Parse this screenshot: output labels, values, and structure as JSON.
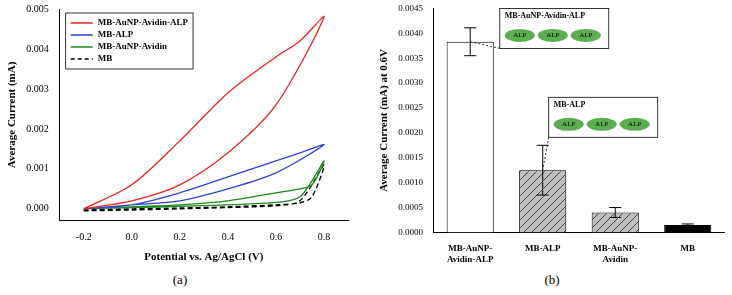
{
  "chart_data": [
    {
      "type": "line",
      "caption": "(a)",
      "x_label": "Potential vs. Ag/AgCl (V)",
      "y_label": "Average Current (mA)",
      "xlim": [
        -0.3,
        0.9
      ],
      "xticks": [
        -0.2,
        {
          "value": 0.0,
          "label": "0.0"
        },
        0.2,
        0.4,
        0.6,
        0.8
      ],
      "ylim": [
        -0.0003,
        0.005
      ],
      "yticks": [
        {
          "value": 0,
          "label": "0.000"
        },
        {
          "value": 0.001,
          "label": "0.001"
        },
        {
          "value": 0.002,
          "label": "0.002"
        },
        {
          "value": 0.003,
          "label": "0.003"
        },
        {
          "value": 0.004,
          "label": "0.004"
        },
        {
          "value": 0.005,
          "label": "0.005"
        }
      ],
      "grid": false,
      "legend": "top-left",
      "series": [
        {
          "name": "MB-AuNP-Avidin-ALP",
          "color": "#e8251f",
          "line_style": "solid",
          "x": [
            -0.2,
            0.0,
            0.2,
            0.4,
            0.6,
            0.8,
            0.7,
            0.6,
            0.4,
            0.2,
            0.0,
            -0.2
          ],
          "values": [
            0.0,
            0.0002,
            0.0006,
            0.0014,
            0.0026,
            0.0048,
            0.0042,
            0.0038,
            0.0029,
            0.0017,
            0.0006,
            0.0
          ]
        },
        {
          "name": "MB-ALP",
          "color": "#2e3fd6",
          "line_style": "solid",
          "x": [
            -0.2,
            0.0,
            0.2,
            0.4,
            0.6,
            0.8,
            0.7,
            0.6,
            0.4,
            0.2,
            0.0,
            -0.2
          ],
          "values": [
            0.0,
            0.0001,
            0.0002,
            0.0005,
            0.0009,
            0.0016,
            0.0014,
            0.0012,
            0.0008,
            0.0004,
            0.0001,
            0.0
          ]
        },
        {
          "name": "MB-AuNP-Avidin",
          "color": "#1a8a1a",
          "line_style": "solid",
          "x": [
            -0.2,
            0.0,
            0.2,
            0.4,
            0.6,
            0.7,
            0.8,
            0.75,
            0.7,
            0.6,
            0.4,
            0.2,
            0.0,
            -0.2
          ],
          "values": [
            0.0,
            3e-05,
            6e-05,
            0.0001,
            0.00016,
            0.0003,
            0.0012,
            0.0006,
            0.0005,
            0.0004,
            0.0002,
            0.0001,
            5e-05,
            0.0
          ]
        },
        {
          "name": "MB",
          "color": "#000000",
          "line_style": "dashed",
          "x": [
            -0.2,
            0.0,
            0.2,
            0.4,
            0.6,
            0.7,
            0.8,
            0.75,
            0.7,
            0.6,
            0.4,
            0.2,
            0.0,
            -0.2
          ],
          "values": [
            -5e-05,
            -3e-05,
            0.0,
            3e-05,
            8e-05,
            0.0002,
            0.0011,
            0.0003,
            0.00015,
            0.0001,
            5e-05,
            2e-05,
            0.0,
            -2e-05
          ]
        }
      ]
    },
    {
      "type": "bar",
      "caption": "(b)",
      "y_label": "Average Current (mA) at 0.6V",
      "categories": [
        "MB-AuNP-Avidin-ALP",
        "MB-ALP",
        "MB-AuNP-Avidin",
        "MB"
      ],
      "values": [
        0.00383,
        0.00125,
        0.0004,
        0.00015
      ],
      "errors": [
        0.00028,
        0.0005,
        0.0001,
        2e-05
      ],
      "colors": [
        "#ffffff",
        "#bfbfbf",
        "#bfbfbf",
        "#000000"
      ],
      "ylim": [
        0,
        0.0045
      ],
      "yticks": [
        {
          "value": 0,
          "label": "0.0000"
        },
        {
          "value": 0.0005,
          "label": "0.0005"
        },
        {
          "value": 0.001,
          "label": "0.0010"
        },
        {
          "value": 0.0015,
          "label": "0.0015"
        },
        {
          "value": 0.002,
          "label": "0.0020"
        },
        {
          "value": 0.0025,
          "label": "0.0025"
        },
        {
          "value": 0.003,
          "label": "0.0030"
        },
        {
          "value": 0.0035,
          "label": "0.0035"
        },
        {
          "value": 0.004,
          "label": "0.0040"
        },
        {
          "value": 0.0045,
          "label": "0.0045"
        }
      ],
      "grid": false,
      "annotations": [
        {
          "category": "MB-AuNP-Avidin-ALP",
          "text": "MB-AuNP-Avidin-ALP",
          "items": [
            "ALP",
            "ALP",
            "ALP"
          ]
        },
        {
          "category": "MB-ALP",
          "text": "MB-ALP",
          "items": [
            "ALP",
            "ALP",
            "ALP"
          ]
        }
      ]
    }
  ]
}
